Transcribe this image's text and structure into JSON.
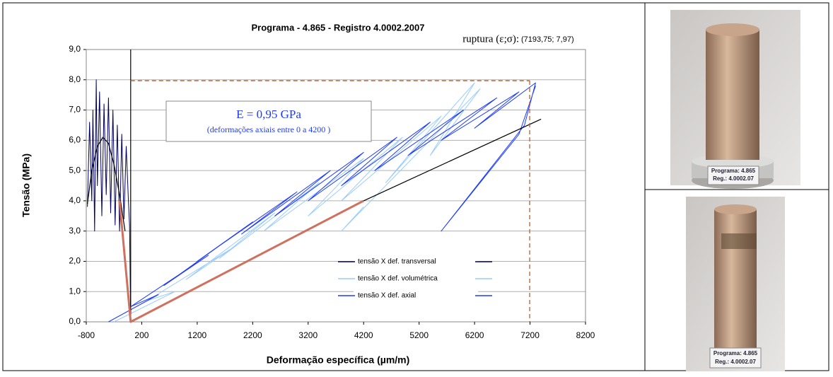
{
  "chart_data": {
    "type": "line",
    "title": "Programa - 4.865 - Registro  4.0002.2007",
    "x_label": "Deformação específica (µm/m)",
    "y_label": "Tensão (MPa)",
    "xlim": [
      -800,
      8200
    ],
    "xticks": [
      -800,
      200,
      1200,
      2200,
      3200,
      4200,
      5200,
      6200,
      7200,
      8200
    ],
    "ylim": [
      0,
      9
    ],
    "yticks": [
      {
        "value": 0,
        "label": "0,0"
      },
      {
        "value": 1,
        "label": "1,0"
      },
      {
        "value": 2,
        "label": "2,0"
      },
      {
        "value": 3,
        "label": "3,0"
      },
      {
        "value": 4,
        "label": "4,0"
      },
      {
        "value": 5,
        "label": "5,0"
      },
      {
        "value": 6,
        "label": "6,0"
      },
      {
        "value": 7,
        "label": "7,0"
      },
      {
        "value": 8,
        "label": "8,0"
      },
      {
        "value": 9,
        "label": "9,0"
      }
    ],
    "grid": true,
    "legend": "lower-right",
    "series": [
      {
        "name": "tensão X def. transversal",
        "color": "#00005e",
        "x": [
          -780,
          -740,
          -700,
          -680,
          -650,
          -620,
          -600,
          -560,
          -520,
          -480,
          -440,
          -400,
          -360,
          -320,
          -280,
          -240,
          -200,
          -160,
          -120,
          -80,
          -40,
          -20,
          0
        ],
        "values": [
          3.8,
          6.6,
          4.0,
          7.0,
          3.0,
          8.0,
          4.5,
          7.6,
          3.5,
          7.2,
          4.2,
          7.4,
          3.6,
          7.0,
          3.2,
          6.5,
          3.0,
          6.2,
          3.4,
          5.8,
          4.0,
          3.2,
          0
        ]
      },
      {
        "name": "tensão X def. volumétrica",
        "color": "#99ccff",
        "x": [
          -300,
          800,
          300,
          1800,
          1000,
          2600,
          1600,
          3400,
          2400,
          4200,
          3200,
          4900,
          3800,
          5600,
          4600,
          6200,
          5400,
          6300,
          3800,
          4200
        ],
        "values": [
          0,
          1.0,
          0.7,
          2.4,
          1.4,
          3.6,
          2.1,
          4.6,
          3.0,
          5.4,
          3.5,
          6.1,
          4.0,
          6.8,
          4.6,
          7.9,
          5.5,
          7.7,
          3.0,
          3.8
        ]
      },
      {
        "name": "tensão X def. axial",
        "color": "#1f3bff",
        "x": [
          -400,
          500,
          0,
          1400,
          600,
          2200,
          1200,
          3000,
          2000,
          3600,
          2600,
          4200,
          3200,
          4800,
          3800,
          5400,
          4400,
          6000,
          5000,
          6600,
          5600,
          7000,
          6200,
          7300,
          7100,
          5600,
          7000,
          7300
        ],
        "values": [
          0,
          0.9,
          0.5,
          2.2,
          1.2,
          3.3,
          2.0,
          4.3,
          2.9,
          5.0,
          3.5,
          5.6,
          4.0,
          6.1,
          4.5,
          6.6,
          5.0,
          7.0,
          5.5,
          7.4,
          6.0,
          7.6,
          6.4,
          7.9,
          6.5,
          3.0,
          6.2,
          7.8
        ]
      }
    ],
    "overlays": [
      {
        "color": "#000000",
        "x": [
          -780,
          -700,
          -600,
          -500,
          -400,
          -300,
          -200,
          -100
        ],
        "values": [
          3.9,
          5.0,
          5.8,
          6.1,
          5.9,
          5.2,
          4.2,
          3.0
        ]
      },
      {
        "color": "#000000",
        "x": [
          4200,
          7400
        ],
        "values": [
          4.0,
          6.7
        ]
      },
      {
        "color": "#000000",
        "x": [
          0,
          0
        ],
        "values": [
          0,
          9
        ]
      },
      {
        "color": "#d0705e",
        "x": [
          -200,
          0,
          4200
        ],
        "values": [
          4.0,
          0,
          4.0
        ]
      }
    ],
    "rupture": {
      "text": "ruptura (ε;σ):",
      "label": "(7193,75; 7,97)",
      "x": 7193.75,
      "y": 7.97,
      "color": "#b5602f"
    },
    "modulus_box": {
      "title": "E = 0,95 GPa",
      "note": "(deformações axiais entre 0 a 4200 )"
    }
  },
  "photos": [
    {
      "line1": "Programa: 4.865",
      "line2": "Reg.: 4.0002.07"
    },
    {
      "line1": "Programa: 4.865",
      "line2": "Reg.: 4.0002.07"
    }
  ]
}
